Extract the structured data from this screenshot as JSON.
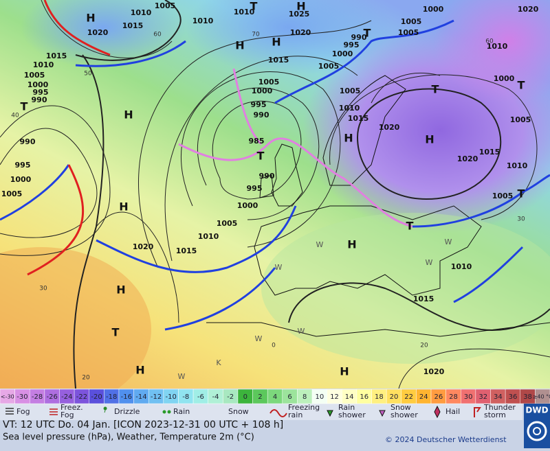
{
  "map": {
    "isobar_labels": [
      1005,
      1010,
      1015,
      1020,
      1010,
      1025,
      1000,
      1020,
      1010,
      1020,
      990,
      1005,
      1005,
      995,
      1000,
      1015,
      1010,
      1005,
      1000,
      995,
      990,
      1015,
      1005,
      1000,
      1010,
      1005,
      1000,
      1005,
      1010,
      1015,
      995,
      990,
      1020,
      985,
      1005,
      990,
      1015,
      1020,
      995,
      1000,
      1010,
      990,
      995,
      1005,
      1005,
      1000,
      1005,
      1010,
      1015,
      1020,
      1010,
      1015,
      1020
    ],
    "pressure_centers": [
      "H",
      "H",
      "H",
      "H",
      "T",
      "T",
      "H",
      "T",
      "T",
      "H",
      "H",
      "T",
      "T",
      "H",
      "H",
      "T",
      "T",
      "H",
      "T",
      "H",
      "H"
    ],
    "weather_letters": [
      "W",
      "W",
      "W",
      "W",
      "W",
      "K",
      "W",
      "W"
    ],
    "grid_labels": [
      50,
      40,
      30,
      20,
      60,
      70,
      0,
      20,
      30,
      60
    ]
  },
  "scale": {
    "labels": [
      "<-30",
      -30,
      -28,
      -26,
      -24,
      -22,
      -20,
      -18,
      -16,
      -14,
      -12,
      -10,
      -8,
      -6,
      -4,
      -2,
      0,
      2,
      4,
      6,
      8,
      10,
      12,
      14,
      16,
      18,
      20,
      22,
      24,
      26,
      28,
      30,
      32,
      34,
      36,
      38,
      "≥40 °C"
    ],
    "colors": [
      "#e6a8e6",
      "#d890e4",
      "#c47ee2",
      "#ae6ee0",
      "#9660de",
      "#7c54dc",
      "#5a50dc",
      "#5070e6",
      "#5090ee",
      "#60aaf0",
      "#70c0f2",
      "#80d4f2",
      "#90e4f0",
      "#a0eee6",
      "#b0f0d6",
      "#a8e8c0",
      "#3cb43c",
      "#5cc85c",
      "#7cd87c",
      "#9ce49c",
      "#bcf0bc",
      "#f4fff4",
      "#ffffe0",
      "#ffffc4",
      "#ffffa0",
      "#fff080",
      "#ffe060",
      "#ffcc40",
      "#ffb430",
      "#ff9c40",
      "#ff8860",
      "#f07070",
      "#e06070",
      "#d06060",
      "#c05050",
      "#b04848",
      "#b09090"
    ]
  },
  "legend": [
    "Fog",
    "Freez.\nFog",
    "Drizzle",
    "Rain",
    "Snow",
    "Freezing\nrain",
    "Rain\nshower",
    "Snow\nshower",
    "Hail",
    "Thunder\nstorm"
  ],
  "footer": {
    "valid_time": "VT: 12 UTC Do.  04 Jan. [ICON 2023-12-31  00 UTC + 108 h]",
    "description": "Sea level pressure (hPa), Weather, Temperature 2m (°C)",
    "copyright": "© 2024 Deutscher Wetterdienst",
    "logo": "DWD"
  }
}
